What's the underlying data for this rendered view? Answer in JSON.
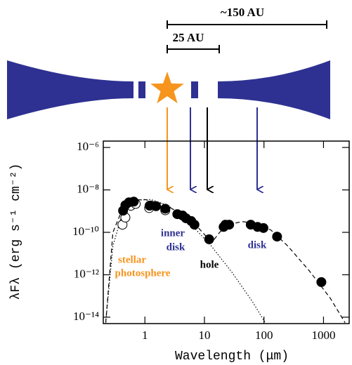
{
  "diagram": {
    "scale_labels": [
      "~150 AU",
      "25 AU"
    ]
  },
  "chart_data": {
    "type": "scatter",
    "x_label": "Wavelength (μm)",
    "y_label": "λFλ (erg s⁻¹ cm⁻²)",
    "xlog": true,
    "ylog": true,
    "xlim": [
      0.2,
      2700
    ],
    "ylim": [
      5e-15,
      2e-06
    ],
    "xticks": [
      1,
      10,
      100,
      1000
    ],
    "yticks": [
      {
        "value": 1e-06,
        "label": "10⁻⁶"
      },
      {
        "value": 1e-08,
        "label": "10⁻⁸"
      },
      {
        "value": 1e-10,
        "label": "10⁻¹⁰"
      },
      {
        "value": 1e-12,
        "label": "10⁻¹²"
      },
      {
        "value": 1e-14,
        "label": "10⁻¹⁴"
      }
    ],
    "series": [
      {
        "style": "dashed",
        "color": "#000000",
        "x": [
          0.22,
          0.29,
          0.43,
          0.65,
          1.0,
          1.9,
          4.3,
          7.4,
          11,
          14,
          18,
          25,
          43,
          74,
          130,
          250,
          570,
          1300,
          2300
        ],
        "values": [
          5.5e-15,
          1e-10,
          1.5e-09,
          3.3e-09,
          3.5e-09,
          2.3e-09,
          7.2e-10,
          2e-10,
          5.9e-11,
          4e-11,
          1e-10,
          2.3e-10,
          3.2e-10,
          2.7e-10,
          1.3e-10,
          2.3e-11,
          1.6e-12,
          7.9e-14,
          5.5e-15
        ]
      },
      {
        "style": "dotted",
        "color": "#000000",
        "x": [
          0.22,
          0.29,
          0.43,
          0.74,
          1.28,
          2.5,
          5.7,
          13,
          29,
          64,
          105
        ],
        "values": [
          5.5e-15,
          2.3e-11,
          1e-09,
          3.3e-09,
          3.5e-09,
          1.8e-09,
          2.7e-10,
          2.3e-11,
          1.3e-12,
          5.4e-14,
          5.5e-15
        ]
      },
      {
        "style": "open",
        "color": "#000000",
        "x": [
          0.42,
          0.47,
          0.58,
          0.7,
          1.18,
          2.2
        ],
        "values": [
          2.3e-10,
          5e-10,
          1.8e-09,
          2.2e-09,
          1.4e-09,
          1.1e-09
        ]
      },
      {
        "style": "filled",
        "color": "#000000",
        "x": [
          0.43,
          0.47,
          0.54,
          0.65,
          1.2,
          1.54,
          2.2,
          3.5,
          4.3,
          4.9,
          6.0,
          6.8,
          12,
          21,
          22.5,
          26,
          60,
          78,
          98,
          166,
          920
        ],
        "values": [
          1.05e-09,
          1.9e-09,
          2.6e-09,
          2.8e-09,
          1.8e-09,
          1.7e-09,
          1.3e-09,
          7.2e-10,
          6.2e-10,
          4.6e-10,
          3.4e-10,
          2.3e-10,
          4.7e-11,
          1.8e-10,
          2.3e-10,
          2.3e-10,
          2.3e-10,
          1.8e-10,
          1.6e-10,
          6.3e-11,
          4.5e-13
        ]
      }
    ],
    "annotations": [
      {
        "lines": [
          "inner",
          "disk"
        ],
        "color": "#2e3192"
      },
      {
        "lines": [
          "stellar",
          "photosphere"
        ],
        "color": "#f7941d"
      },
      {
        "lines": [
          "hole"
        ],
        "color": "#000000"
      },
      {
        "lines": [
          "disk"
        ],
        "color": "#2e3192"
      }
    ]
  }
}
